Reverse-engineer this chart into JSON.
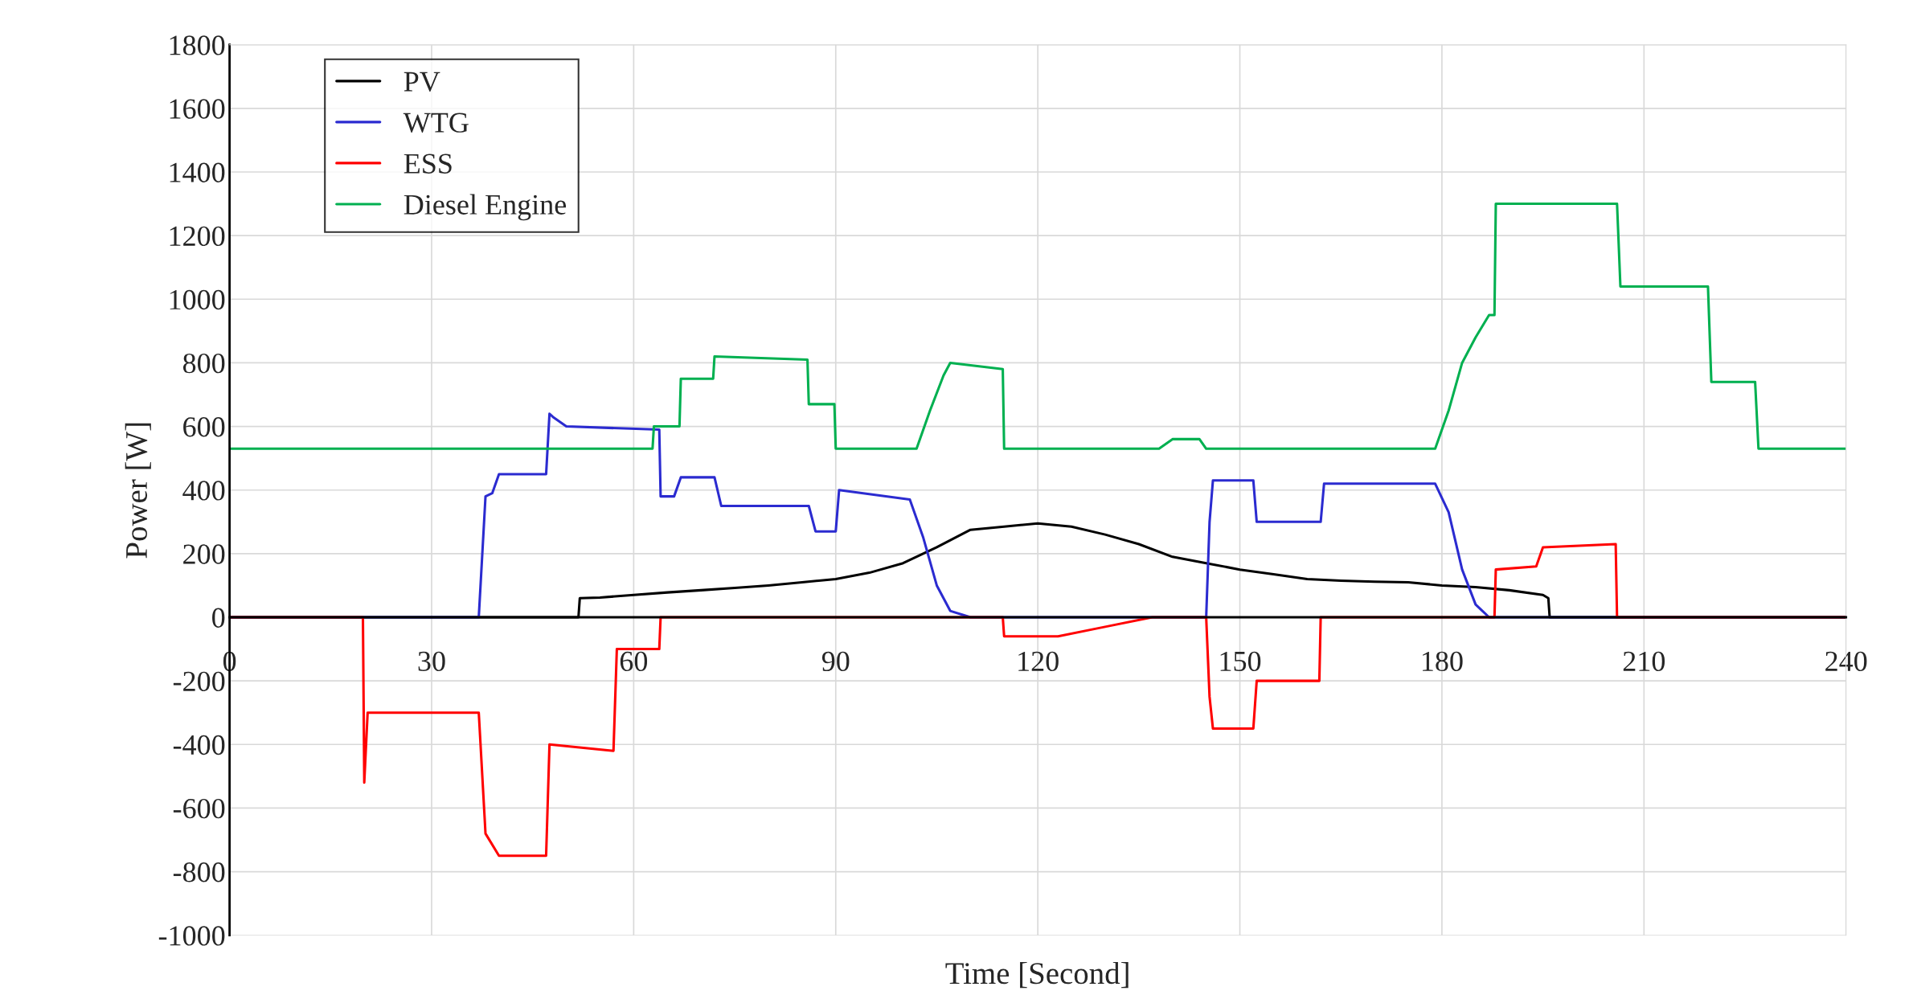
{
  "chart_data": {
    "type": "line",
    "xlabel": "Time [Second]",
    "ylabel": "Power [W]",
    "xlim": [
      0,
      240
    ],
    "ylim": [
      -1000,
      1800
    ],
    "xticks": [
      0,
      30,
      60,
      90,
      120,
      150,
      180,
      210,
      240
    ],
    "yticks": [
      -1000,
      -800,
      -600,
      -400,
      -200,
      0,
      200,
      400,
      600,
      800,
      1000,
      1200,
      1400,
      1600,
      1800
    ],
    "grid": true,
    "legend": "top left",
    "marker": "none",
    "line_style": "solid",
    "series": [
      {
        "name": "PV",
        "color": "#000000",
        "x": [
          0,
          51.8,
          52,
          55,
          60,
          65,
          70,
          75,
          80,
          85,
          90,
          95,
          100,
          105,
          110,
          115,
          120,
          125,
          130,
          135,
          140,
          145,
          150,
          155,
          160,
          165,
          170,
          175,
          180,
          185,
          190,
          195,
          195.8,
          196,
          240
        ],
        "values": [
          0,
          0,
          60,
          62,
          70,
          78,
          85,
          92,
          100,
          110,
          120,
          140,
          170,
          220,
          275,
          285,
          295,
          285,
          260,
          230,
          190,
          170,
          150,
          135,
          120,
          115,
          112,
          110,
          100,
          95,
          85,
          70,
          60,
          0,
          0
        ]
      },
      {
        "name": "WTG",
        "color": "#2b2bd0",
        "x": [
          0,
          37,
          38,
          39,
          40,
          47,
          47.5,
          48,
          50,
          63.8,
          64,
          66,
          67,
          72,
          73,
          86,
          87,
          90,
          90.5,
          101,
          103,
          105,
          107,
          110,
          145,
          145.5,
          146,
          152,
          152.5,
          162,
          162.5,
          179,
          181,
          183,
          185,
          187,
          240
        ],
        "values": [
          0,
          0,
          380,
          390,
          450,
          450,
          640,
          630,
          600,
          590,
          380,
          380,
          440,
          440,
          350,
          350,
          270,
          270,
          400,
          370,
          250,
          100,
          20,
          0,
          0,
          300,
          430,
          430,
          300,
          300,
          420,
          420,
          330,
          150,
          40,
          0,
          0
        ]
      },
      {
        "name": "ESS",
        "color": "#ff0000",
        "x": [
          0,
          19.8,
          20,
          20.5,
          21,
          37,
          38,
          40,
          47,
          47.5,
          57,
          57.5,
          63.8,
          64,
          114.8,
          115,
          123,
          130,
          137,
          145,
          145.5,
          146,
          152,
          152.5,
          161.8,
          162,
          187.8,
          188,
          194,
          195,
          205.8,
          206,
          240
        ],
        "values": [
          0,
          0,
          -520,
          -300,
          -300,
          -300,
          -680,
          -750,
          -750,
          -400,
          -420,
          -100,
          -100,
          0,
          0,
          -60,
          -60,
          -30,
          0,
          0,
          -250,
          -350,
          -350,
          -200,
          -200,
          0,
          0,
          150,
          160,
          220,
          230,
          0,
          0
        ]
      },
      {
        "name": "Diesel Engine",
        "color": "#00b050",
        "x": [
          0,
          62.8,
          63,
          66.8,
          67,
          71.8,
          72,
          85.8,
          86,
          89.8,
          90,
          102,
          104,
          106,
          107,
          114.8,
          115,
          138,
          140,
          144,
          145,
          179,
          181,
          183,
          185,
          187,
          187.8,
          188,
          206,
          206.5,
          219.5,
          220,
          226.5,
          227,
          240
        ],
        "values": [
          530,
          530,
          600,
          600,
          750,
          750,
          820,
          810,
          670,
          670,
          530,
          530,
          650,
          760,
          800,
          780,
          530,
          530,
          560,
          560,
          530,
          530,
          650,
          800,
          880,
          950,
          950,
          1300,
          1300,
          1040,
          1040,
          740,
          740,
          530,
          530
        ]
      }
    ]
  }
}
